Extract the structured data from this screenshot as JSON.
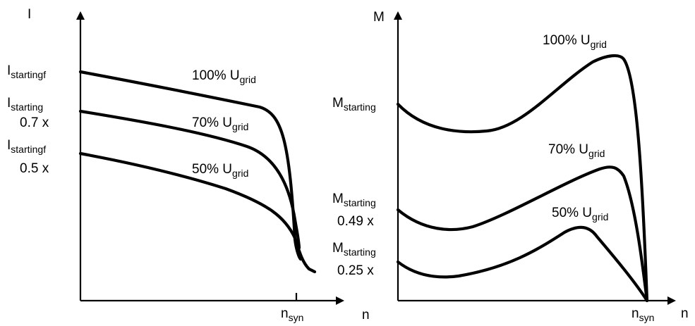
{
  "chart_data": [
    {
      "type": "line",
      "title": "",
      "xlabel": "n",
      "ylabel": "I",
      "x_tick_label": {
        "main": "n",
        "sub": "syn"
      },
      "y_labels": [
        {
          "main": "I",
          "sub": "startingf",
          "extra": ""
        },
        {
          "main": "I",
          "sub": "starting",
          "extra": "0.7 x"
        },
        {
          "main": "I",
          "sub": "startingf",
          "extra": "0.5 x"
        }
      ],
      "series": [
        {
          "label_main": "100% U",
          "label_sub": "grid"
        },
        {
          "label_main": "70% U",
          "label_sub": "grid"
        },
        {
          "label_main": "50% U",
          "label_sub": "grid"
        }
      ]
    },
    {
      "type": "line",
      "title": "",
      "xlabel": "n",
      "ylabel": "M",
      "x_tick_label": {
        "main": "n",
        "sub": "syn"
      },
      "y_labels": [
        {
          "main": "M",
          "sub": "starting",
          "extra": ""
        },
        {
          "main": "M",
          "sub": "starting",
          "extra": "0.49 x"
        },
        {
          "main": "M",
          "sub": "starting",
          "extra": "0.25 x"
        }
      ],
      "series": [
        {
          "label_main": "100% U",
          "label_sub": "grid"
        },
        {
          "label_main": "70% U",
          "label_sub": "grid"
        },
        {
          "label_main": "50% U",
          "label_sub": "grid"
        }
      ]
    }
  ]
}
